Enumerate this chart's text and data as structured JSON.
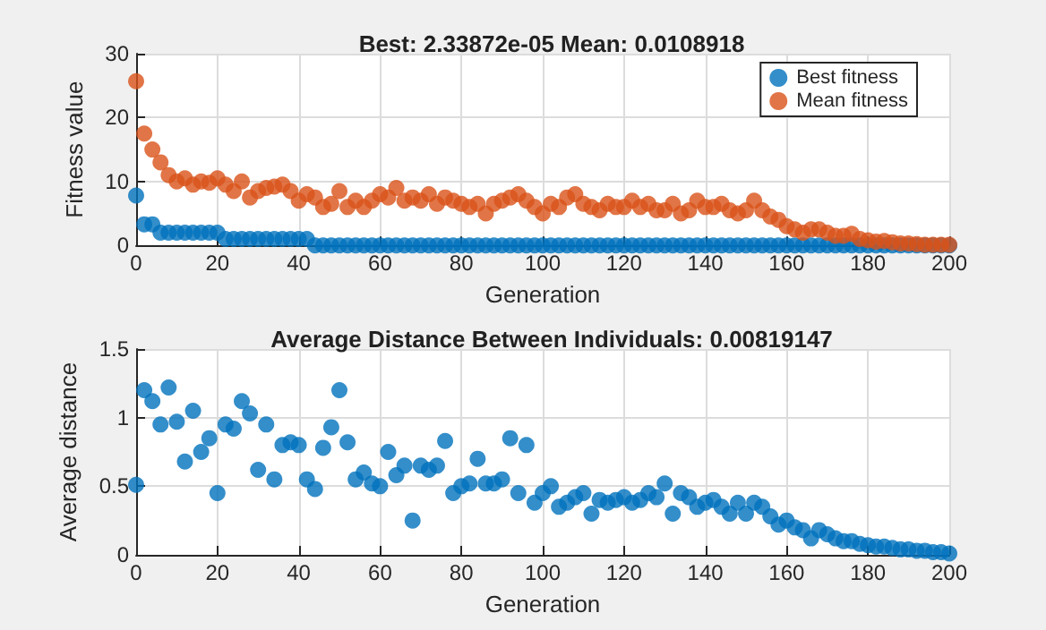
{
  "chart_data": [
    {
      "type": "scatter",
      "title": "Best: 2.33872e-05 Mean: 0.0108918",
      "xlabel": "Generation",
      "ylabel": "Fitness value",
      "xlim": [
        0,
        200
      ],
      "ylim": [
        0,
        30
      ],
      "xticks": [
        0,
        20,
        40,
        60,
        80,
        100,
        120,
        140,
        160,
        180,
        200
      ],
      "yticks": [
        0,
        10,
        20,
        30
      ],
      "grid": true,
      "legend": "top right",
      "marker": "circle",
      "x": [
        0,
        2,
        4,
        6,
        8,
        10,
        12,
        14,
        16,
        18,
        20,
        22,
        24,
        26,
        28,
        30,
        32,
        34,
        36,
        38,
        40,
        42,
        44,
        46,
        48,
        50,
        52,
        54,
        56,
        58,
        60,
        62,
        64,
        66,
        68,
        70,
        72,
        74,
        76,
        78,
        80,
        82,
        84,
        86,
        88,
        90,
        92,
        94,
        96,
        98,
        100,
        102,
        104,
        106,
        108,
        110,
        112,
        114,
        116,
        118,
        120,
        122,
        124,
        126,
        128,
        130,
        132,
        134,
        136,
        138,
        140,
        142,
        144,
        146,
        148,
        150,
        152,
        154,
        156,
        158,
        160,
        162,
        164,
        166,
        168,
        170,
        172,
        174,
        176,
        178,
        180,
        182,
        184,
        186,
        188,
        190,
        192,
        194,
        196,
        198,
        200
      ],
      "series": [
        {
          "name": "Best fitness",
          "color": "#0072bd",
          "values": [
            7.8,
            3.3,
            3.3,
            2,
            2,
            2,
            2,
            2,
            2,
            2,
            2,
            1,
            1,
            1,
            1,
            1,
            1,
            1,
            1,
            1,
            1,
            1,
            0,
            0,
            0,
            0,
            0,
            0,
            0,
            0,
            0,
            0,
            0,
            0,
            0,
            0,
            0,
            0,
            0,
            0,
            0,
            0,
            0,
            0,
            0,
            0,
            0,
            0,
            0,
            0,
            0,
            0,
            0,
            0,
            0,
            0,
            0,
            0,
            0,
            0,
            0,
            0,
            0,
            0,
            0,
            0,
            0,
            0,
            0,
            0,
            0,
            0,
            0,
            0,
            0,
            0,
            0,
            0,
            0,
            0,
            0,
            0,
            0,
            0,
            0,
            0,
            0,
            0,
            0,
            0,
            0,
            0,
            0,
            0,
            0,
            0,
            0,
            0,
            0,
            0,
            0
          ]
        },
        {
          "name": "Mean fitness",
          "color": "#d95319",
          "values": [
            25.7,
            17.5,
            15,
            13,
            11,
            10,
            10.5,
            9.5,
            10,
            9.8,
            10.5,
            9.5,
            8.5,
            10,
            7.5,
            8.5,
            9,
            9.2,
            9.5,
            8.5,
            7,
            8,
            7.5,
            6,
            6.5,
            8.5,
            6,
            7,
            6,
            7,
            8,
            7.5,
            9,
            7,
            7.5,
            7,
            8,
            6.5,
            7.5,
            7,
            6.5,
            6,
            6.5,
            5,
            6.5,
            7,
            7.5,
            8,
            7,
            6,
            5,
            6.5,
            6,
            7.5,
            8,
            6.5,
            6,
            5.5,
            6.5,
            6,
            6,
            7,
            6,
            6.5,
            5.5,
            5.5,
            6.5,
            5,
            5.5,
            7,
            6,
            6,
            6.5,
            5.5,
            5,
            5.5,
            7,
            5.5,
            4.5,
            4,
            3,
            2.5,
            2,
            2.5,
            2.5,
            2,
            1.5,
            1.5,
            1.8,
            1,
            0.8,
            0.6,
            0.7,
            0.5,
            0.3,
            0.3,
            0.2,
            0.1,
            0.1,
            0.1,
            0.1
          ]
        }
      ]
    },
    {
      "type": "scatter",
      "title": "Average Distance Between Individuals: 0.00819147",
      "xlabel": "Generation",
      "ylabel": "Average distance",
      "xlim": [
        0,
        200
      ],
      "ylim": [
        0,
        1.5
      ],
      "xticks": [
        0,
        20,
        40,
        60,
        80,
        100,
        120,
        140,
        160,
        180,
        200
      ],
      "yticks": [
        0,
        0.5,
        1,
        1.5
      ],
      "grid": true,
      "marker": "circle",
      "x": [
        0,
        2,
        4,
        6,
        8,
        10,
        12,
        14,
        16,
        18,
        20,
        22,
        24,
        26,
        28,
        30,
        32,
        34,
        36,
        38,
        40,
        42,
        44,
        46,
        48,
        50,
        52,
        54,
        56,
        58,
        60,
        62,
        64,
        66,
        68,
        70,
        72,
        74,
        76,
        78,
        80,
        82,
        84,
        86,
        88,
        90,
        92,
        94,
        96,
        98,
        100,
        102,
        104,
        106,
        108,
        110,
        112,
        114,
        116,
        118,
        120,
        122,
        124,
        126,
        128,
        130,
        132,
        134,
        136,
        138,
        140,
        142,
        144,
        146,
        148,
        150,
        152,
        154,
        156,
        158,
        160,
        162,
        164,
        166,
        168,
        170,
        172,
        174,
        176,
        178,
        180,
        182,
        184,
        186,
        188,
        190,
        192,
        194,
        196,
        198,
        200
      ],
      "series": [
        {
          "color": "#0072bd",
          "values": [
            0.51,
            1.2,
            1.12,
            0.95,
            1.22,
            0.97,
            0.68,
            1.05,
            0.75,
            0.85,
            0.45,
            0.95,
            0.92,
            1.12,
            1.03,
            0.62,
            0.95,
            0.55,
            0.8,
            0.82,
            0.8,
            0.55,
            0.48,
            0.78,
            0.93,
            1.2,
            0.82,
            0.55,
            0.6,
            0.52,
            0.5,
            0.75,
            0.58,
            0.65,
            0.25,
            0.65,
            0.62,
            0.65,
            0.83,
            0.45,
            0.5,
            0.52,
            0.7,
            0.52,
            0.52,
            0.55,
            0.85,
            0.45,
            0.8,
            0.38,
            0.45,
            0.5,
            0.35,
            0.38,
            0.42,
            0.45,
            0.3,
            0.4,
            0.38,
            0.4,
            0.42,
            0.38,
            0.4,
            0.45,
            0.42,
            0.52,
            0.3,
            0.45,
            0.42,
            0.35,
            0.38,
            0.4,
            0.35,
            0.3,
            0.38,
            0.3,
            0.38,
            0.35,
            0.28,
            0.22,
            0.25,
            0.2,
            0.18,
            0.12,
            0.18,
            0.15,
            0.12,
            0.1,
            0.1,
            0.08,
            0.07,
            0.06,
            0.06,
            0.05,
            0.04,
            0.04,
            0.03,
            0.03,
            0.02,
            0.02,
            0.01
          ]
        }
      ]
    }
  ]
}
